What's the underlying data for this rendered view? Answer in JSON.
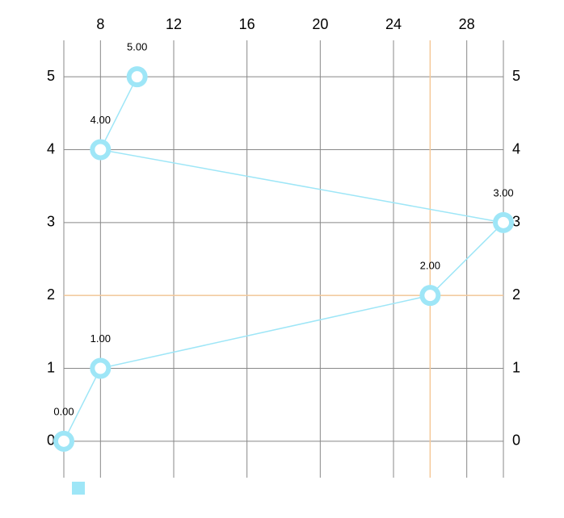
{
  "chart_data": {
    "type": "line",
    "x": [
      6,
      8,
      26,
      30,
      8,
      10
    ],
    "values": [
      0,
      1,
      2,
      3,
      4,
      5
    ],
    "value_labels": [
      "0.00",
      "1.00",
      "2.00",
      "3.00",
      "4.00",
      "5.00"
    ],
    "color": "#9ee6f7",
    "xlim": [
      6,
      30
    ],
    "xticks": [
      8,
      12,
      16,
      20,
      24,
      28
    ],
    "ylim": [
      -0.5,
      5.5
    ],
    "yticks": [
      0,
      1,
      2,
      3,
      4,
      5
    ],
    "y2lim": [
      -0.5,
      5.5
    ],
    "y2ticks": [
      0,
      1,
      2,
      3,
      4,
      5
    ],
    "grid": true,
    "highlight_index": 2,
    "highlight_color": "#f5c99a"
  }
}
